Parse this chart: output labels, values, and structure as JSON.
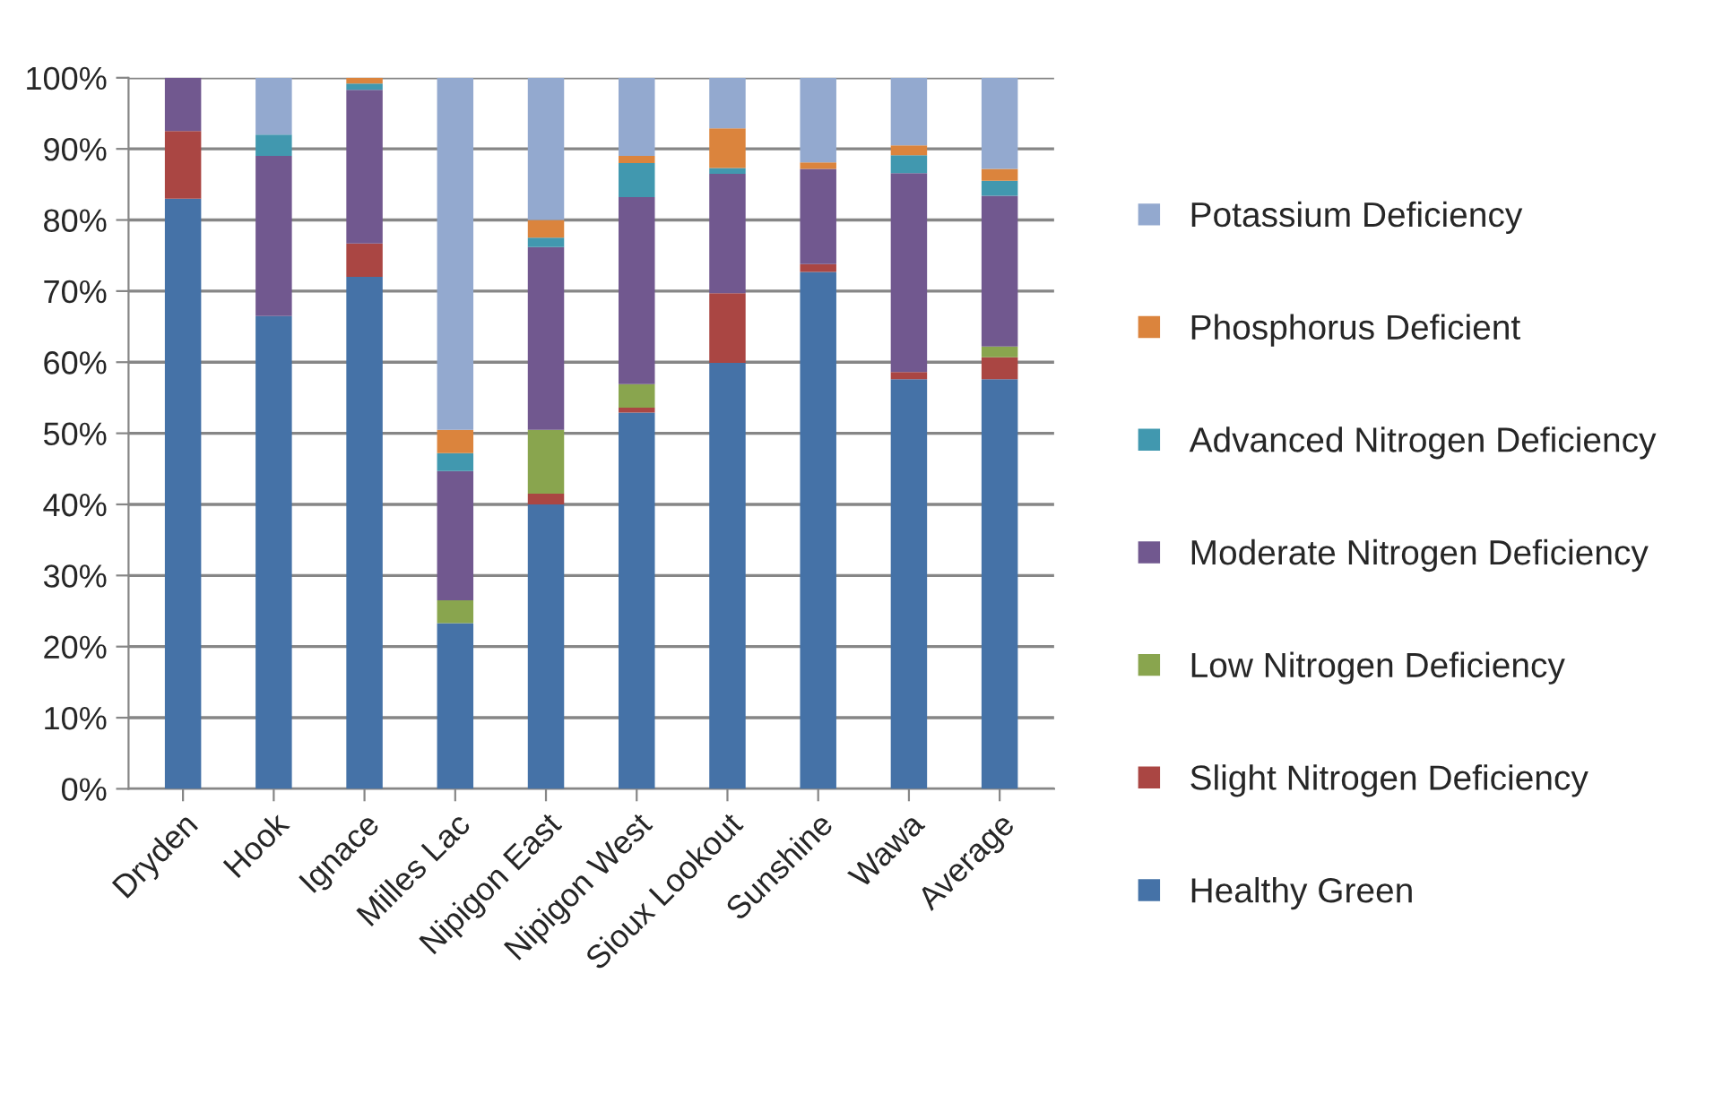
{
  "chart_data": {
    "type": "bar",
    "stacked": true,
    "categories": [
      "Dryden",
      "Hook",
      "Ignace",
      "Milles Lac",
      "Nipigon East",
      "Nipigon West",
      "Sioux Lookout",
      "Sunshine",
      "Wawa",
      "Average"
    ],
    "series": [
      {
        "name": "Healthy Green",
        "color": "#4572a7",
        "values": [
          83,
          66.5,
          72,
          23.3,
          40,
          52.9,
          59.9,
          72.7,
          57.6,
          57.6
        ]
      },
      {
        "name": "Slight Nitrogen Deficiency",
        "color": "#aa4643",
        "values": [
          9.5,
          0,
          4.7,
          0,
          1.5,
          0.7,
          9.8,
          1.1,
          1,
          3.1
        ]
      },
      {
        "name": "Low Nitrogen Deficiency",
        "color": "#89a54e",
        "values": [
          0,
          0,
          0,
          3.2,
          9,
          3.3,
          0,
          0,
          0,
          1.5
        ]
      },
      {
        "name": "Moderate Nitrogen Deficiency",
        "color": "#71588f",
        "values": [
          7.5,
          22.5,
          21.6,
          18.2,
          25.7,
          26.3,
          16.8,
          13.4,
          28,
          21.2
        ]
      },
      {
        "name": "Advanced Nitrogen Deficiency",
        "color": "#4198af",
        "values": [
          0,
          3,
          0.9,
          2.5,
          1.3,
          4.8,
          0.8,
          0,
          2.5,
          2.1
        ]
      },
      {
        "name": "Phosphorus Deficient",
        "color": "#db843d",
        "values": [
          0,
          0,
          0.8,
          3.3,
          2.5,
          1,
          5.6,
          0.9,
          1.4,
          1.7
        ]
      },
      {
        "name": "Potassium Deficiency",
        "color": "#93a9cf",
        "values": [
          0,
          8,
          0,
          49.5,
          20,
          11,
          7.1,
          11.9,
          9.5,
          12.8
        ]
      }
    ],
    "ylim": [
      0,
      100
    ],
    "yticks": [
      {
        "value": 0,
        "label": "0%"
      },
      {
        "value": 10,
        "label": "10%"
      },
      {
        "value": 20,
        "label": "20%"
      },
      {
        "value": 30,
        "label": "30%"
      },
      {
        "value": 40,
        "label": "40%"
      },
      {
        "value": 50,
        "label": "50%"
      },
      {
        "value": 60,
        "label": "60%"
      },
      {
        "value": 70,
        "label": "70%"
      },
      {
        "value": 80,
        "label": "80%"
      },
      {
        "value": 90,
        "label": "90%"
      },
      {
        "value": 100,
        "label": "100%"
      }
    ],
    "grid": "y",
    "legend": "right"
  }
}
